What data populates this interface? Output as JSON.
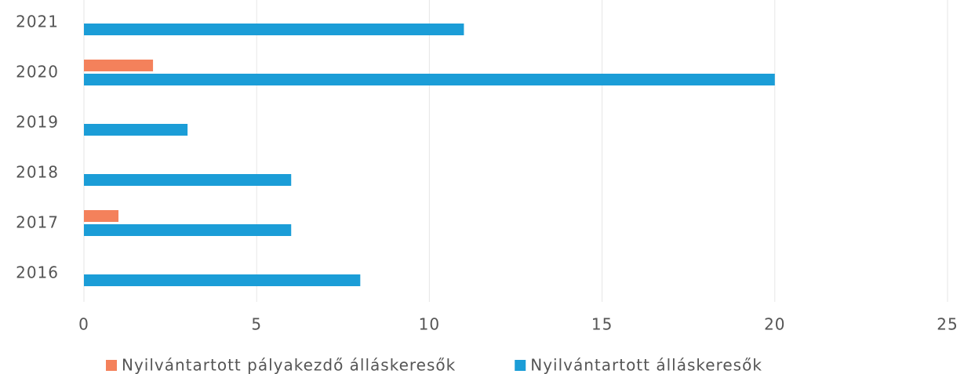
{
  "chart_data": {
    "type": "hbar",
    "categories": [
      "2021",
      "2020",
      "2019",
      "2018",
      "2017",
      "2016"
    ],
    "series": [
      {
        "name": "Nyilvántartott pályakezdő álláskeresők",
        "color": "#f4815b",
        "values": [
          0,
          2,
          0,
          0,
          1,
          0
        ]
      },
      {
        "name": "Nyilvántartott álláskeresők",
        "color": "#1b9dd7",
        "values": [
          11,
          20,
          3,
          6,
          6,
          8
        ]
      }
    ],
    "xlim": [
      0,
      25
    ],
    "xticks": [
      0,
      5,
      10,
      15,
      20,
      25
    ],
    "grid": true,
    "legend": "bottom"
  }
}
